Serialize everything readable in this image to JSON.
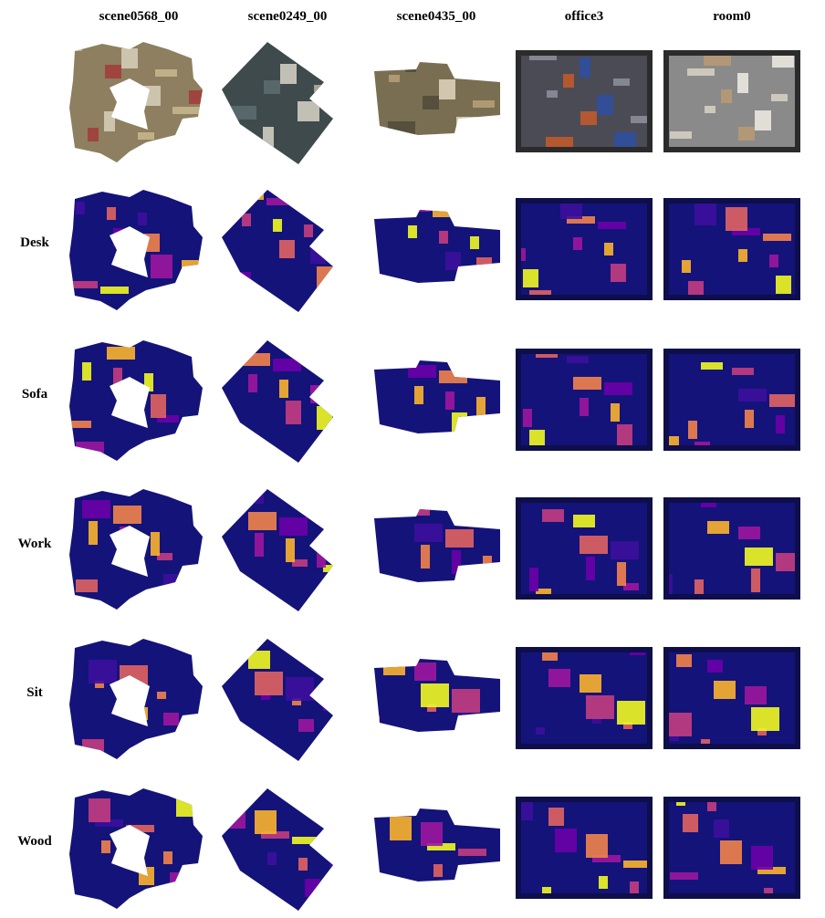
{
  "columns": [
    {
      "label": "scene0568_00"
    },
    {
      "label": "scene0249_00"
    },
    {
      "label": "scene0435_00"
    },
    {
      "label": "office3"
    },
    {
      "label": "room0"
    }
  ],
  "rows": [
    {
      "label": ""
    },
    {
      "label": "Desk"
    },
    {
      "label": "Sofa"
    },
    {
      "label": "Work"
    },
    {
      "label": "Sit"
    },
    {
      "label": "Wood"
    }
  ]
}
